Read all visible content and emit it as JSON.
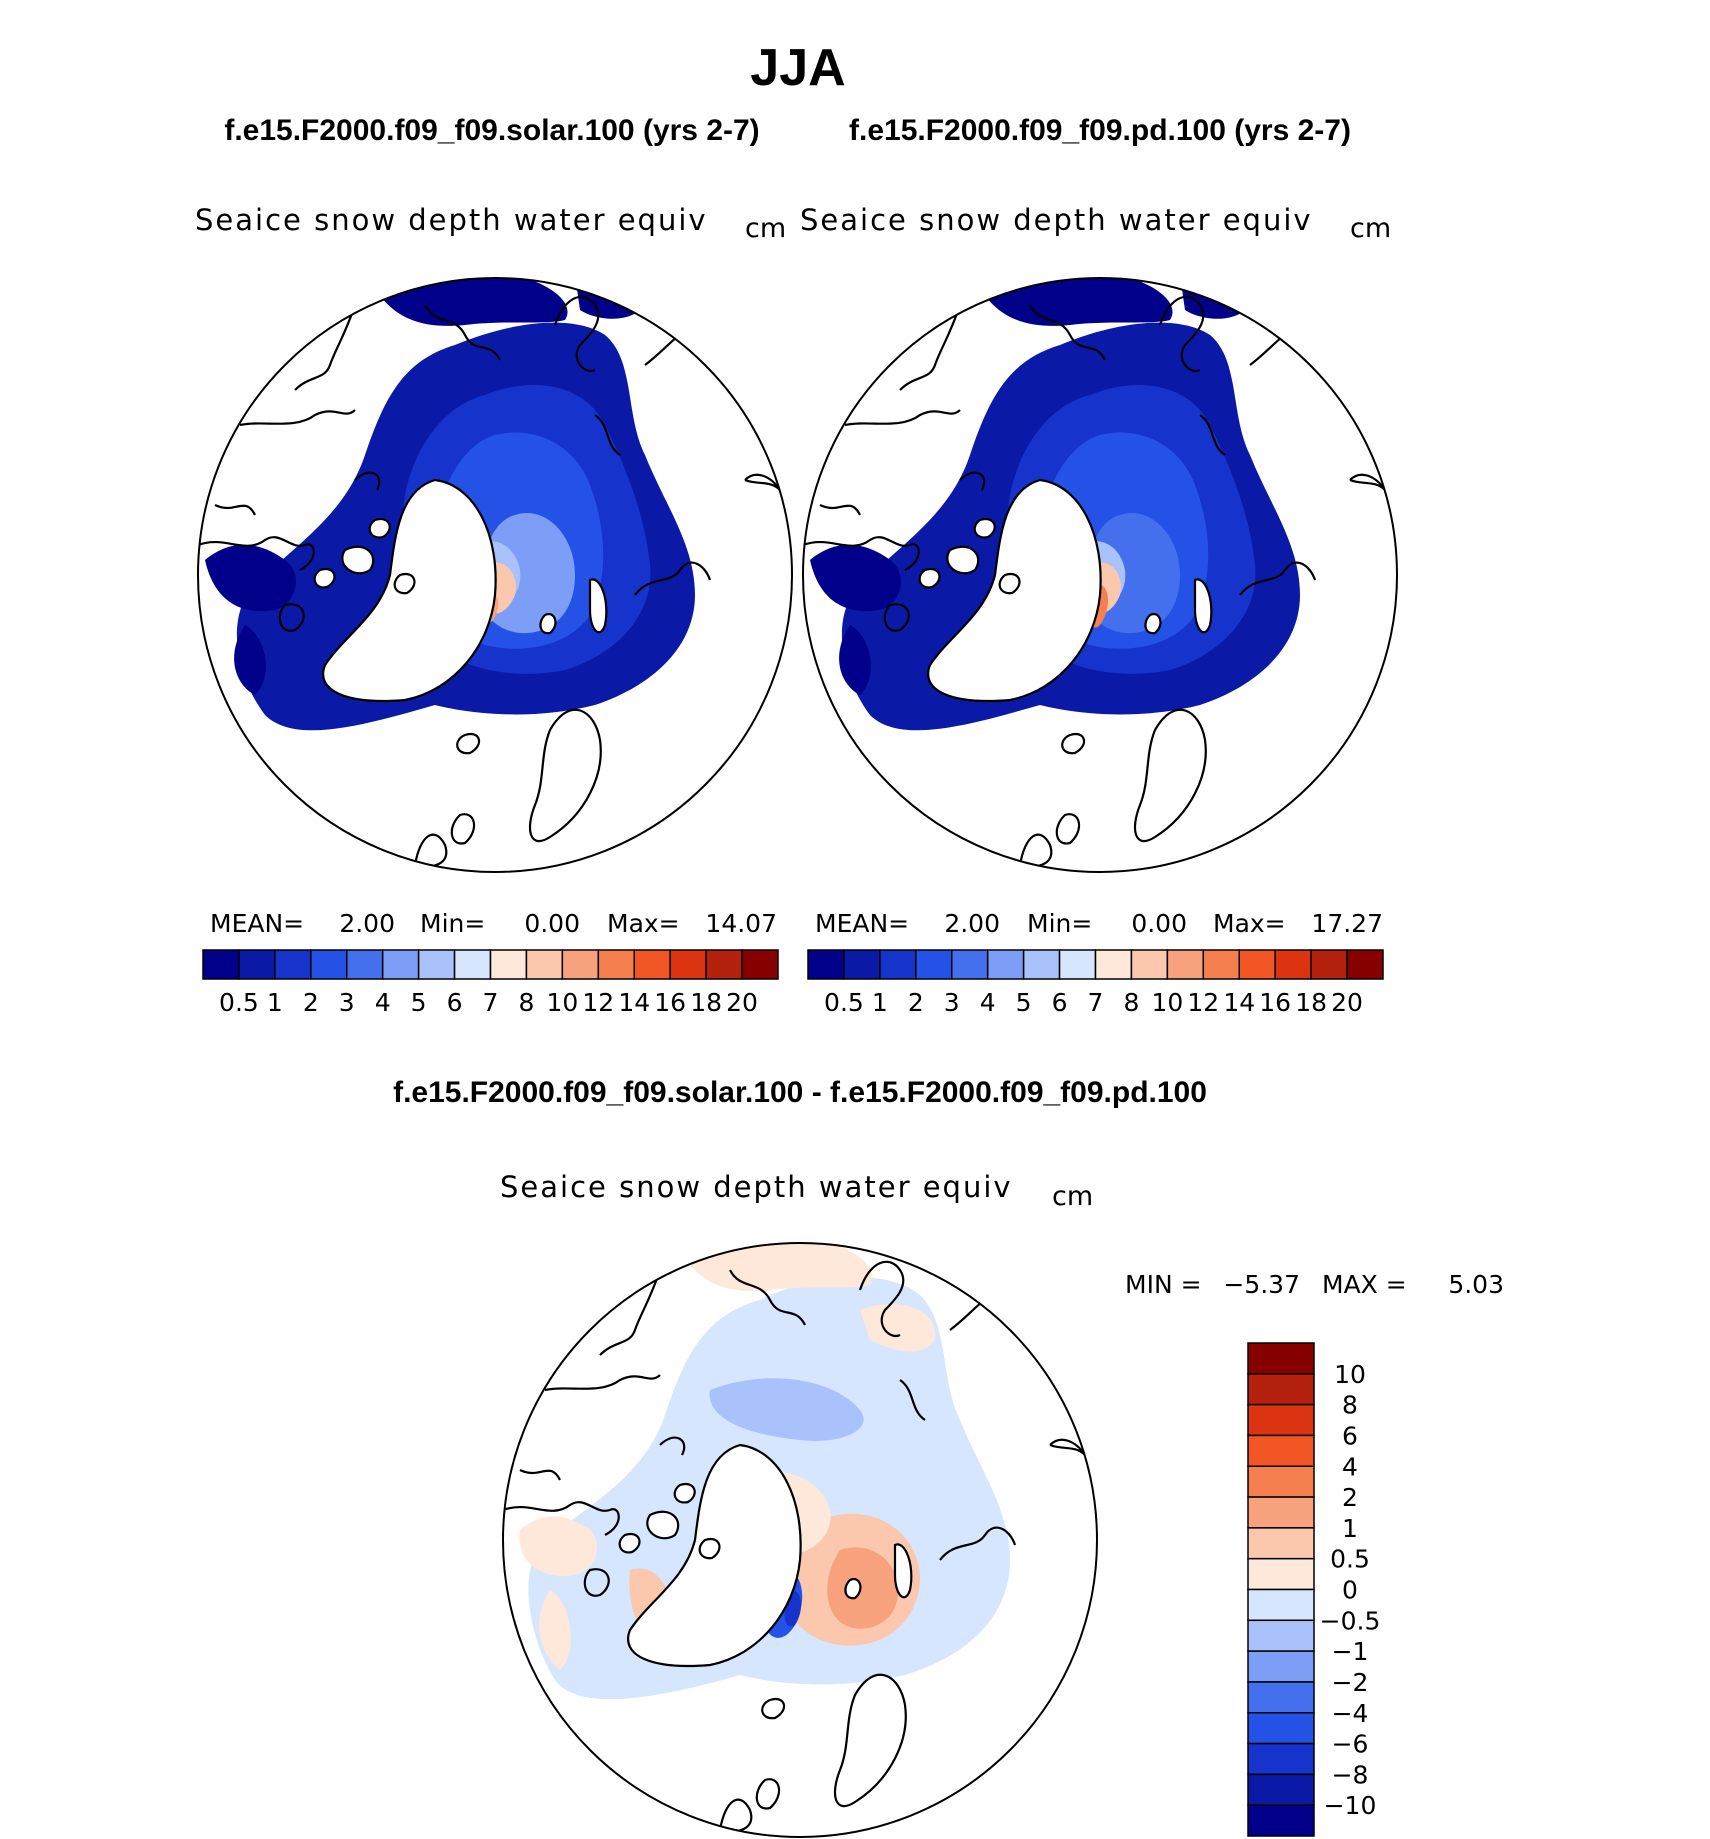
{
  "title": "JJA",
  "panel_titles": [
    "f.e15.F2000.f09_f09.solar.100 (yrs 2-7)",
    "f.e15.F2000.f09_f09.pd.100 (yrs 2-7)"
  ],
  "diff_title": "f.e15.F2000.f09_f09.solar.100 - f.e15.F2000.f09_f09.pd.100",
  "variable": "Seaice snow depth water equiv",
  "units": "cm",
  "stats": [
    {
      "mean_label": "MEAN=",
      "mean": "2.00",
      "min_label": "Min=",
      "min": "0.00",
      "max_label": "Max=",
      "max": "14.07"
    },
    {
      "mean_label": "MEAN=",
      "mean": "2.00",
      "min_label": "Min=",
      "min": "0.00",
      "max_label": "Max=",
      "max": "17.27"
    }
  ],
  "diff_stats": {
    "min_label": "MIN =",
    "min": "−5.37",
    "max_label": "MAX =",
    "max": "5.03"
  },
  "colorbar": {
    "labels": [
      "0.5",
      "1",
      "2",
      "3",
      "4",
      "5",
      "6",
      "7",
      "8",
      "10",
      "12",
      "14",
      "16",
      "18",
      "20"
    ],
    "colors": [
      "#00008b",
      "#0a1aa6",
      "#1634cc",
      "#2452e6",
      "#4470ee",
      "#7d9ef6",
      "#a9c2fb",
      "#d6e6ff",
      "#fde8da",
      "#fbc8ad",
      "#f7a27d",
      "#f57f4f",
      "#f25624",
      "#dc3410",
      "#b4220e",
      "#860000"
    ]
  },
  "diff_colorbar": {
    "labels": [
      "10",
      "8",
      "6",
      "4",
      "2",
      "1",
      "0.5",
      "0",
      "−0.5",
      "−1",
      "−2",
      "−4",
      "−6",
      "−8",
      "−10"
    ],
    "colors": [
      "#860000",
      "#b4220e",
      "#dc3410",
      "#f25624",
      "#f57f4f",
      "#f7a27d",
      "#fbc8ad",
      "#fde8da",
      "#d6e6ff",
      "#a9c2fb",
      "#7d9ef6",
      "#4470ee",
      "#2452e6",
      "#1634cc",
      "#0a1aa6",
      "#00008b"
    ]
  }
}
